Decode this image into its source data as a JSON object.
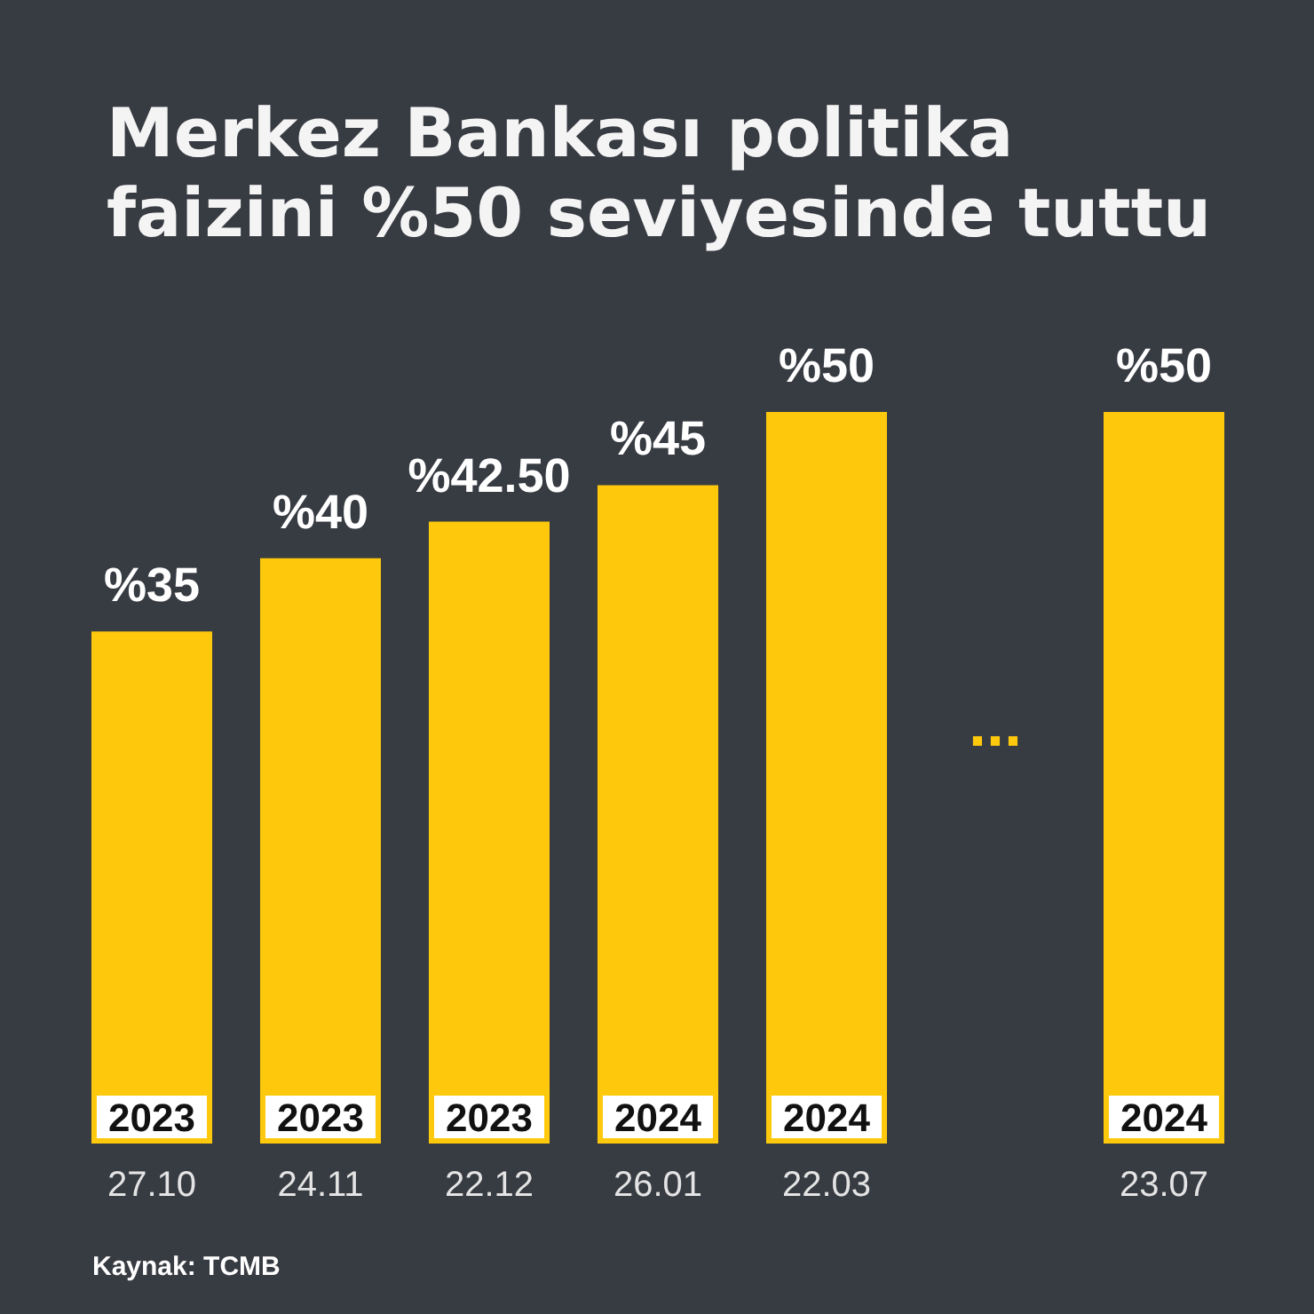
{
  "chart_data": {
    "type": "bar",
    "title": "Merkez Bankası politika faizini %50 seviyesinde tuttu",
    "categories": [
      "27.10",
      "24.11",
      "22.12",
      "26.01",
      "22.03",
      null,
      "23.07"
    ],
    "values": [
      35,
      40,
      42.5,
      45,
      50,
      null,
      50
    ],
    "color": "#fec90c",
    "value_labels": [
      "%35",
      "%40",
      "%42.50",
      "%45",
      "%50",
      null,
      "%50"
    ],
    "annotations": [
      "2023",
      "2023",
      "2023",
      "2024",
      "2024",
      "2024",
      "...",
      "Kaynak: TCMB"
    ]
  }
}
